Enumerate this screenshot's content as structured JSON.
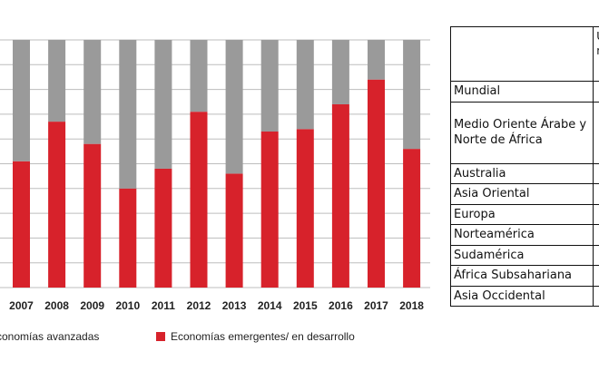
{
  "colors": {
    "advanced": "#9a9a9a",
    "emerging": "#d7222b"
  },
  "chart_data": {
    "type": "bar",
    "stacked": true,
    "categories": [
      "2007",
      "2008",
      "2009",
      "2010",
      "2011",
      "2012",
      "2013",
      "2014",
      "2015",
      "2016",
      "2017",
      "2018"
    ],
    "ylim": [
      0,
      100
    ],
    "grid": true,
    "legend_position": "bottom",
    "series": [
      {
        "name": "Economías emergentes/ en desarrollo",
        "color": "#d7222b",
        "values": [
          51,
          67,
          58,
          40,
          48,
          71,
          46,
          63,
          64,
          74,
          84,
          56
        ]
      },
      {
        "name": "conomías avanzadas",
        "color": "#9a9a9a",
        "values": [
          49,
          33,
          42,
          60,
          52,
          29,
          54,
          37,
          36,
          26,
          16,
          44
        ]
      }
    ]
  },
  "table": {
    "header": [
      "",
      "U\nn"
    ],
    "rows": [
      "Mundial",
      "Medio Oriente Árabe y\nNorte de África",
      "Australia",
      "Asia Oriental",
      "Europa",
      "Norteamérica",
      "Sudamérica",
      "África Subsahariana",
      "Asia Occidental"
    ]
  }
}
